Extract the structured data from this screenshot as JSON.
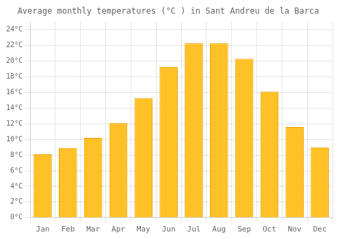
{
  "chart_data": {
    "type": "bar",
    "title": "Average monthly temperatures (°C ) in Sant Andreu de la Barca",
    "categories": [
      "Jan",
      "Feb",
      "Mar",
      "Apr",
      "May",
      "Jun",
      "Jul",
      "Aug",
      "Sep",
      "Oct",
      "Nov",
      "Dec"
    ],
    "values": [
      8.1,
      8.9,
      10.2,
      12.1,
      15.3,
      19.3,
      22.3,
      22.3,
      20.3,
      16.1,
      11.6,
      9.0
    ],
    "color": "#FFC125",
    "ylim": [
      0,
      25
    ],
    "yticks": [
      {
        "value": 0,
        "label": "0°C"
      },
      {
        "value": 2,
        "label": "2°C"
      },
      {
        "value": 4,
        "label": "4°C"
      },
      {
        "value": 6,
        "label": "6°C"
      },
      {
        "value": 8,
        "label": "8°C"
      },
      {
        "value": 10,
        "label": "10°C"
      },
      {
        "value": 12,
        "label": "12°C"
      },
      {
        "value": 14,
        "label": "14°C"
      },
      {
        "value": 16,
        "label": "16°C"
      },
      {
        "value": 18,
        "label": "18°C"
      },
      {
        "value": 20,
        "label": "20°C"
      },
      {
        "value": 22,
        "label": "22°C"
      },
      {
        "value": 24,
        "label": "24°C"
      }
    ],
    "grid": true
  }
}
